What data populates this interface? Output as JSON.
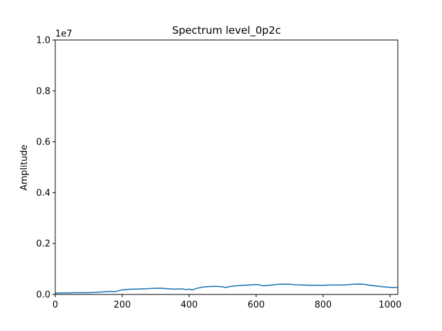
{
  "chart_data": {
    "type": "line",
    "title": "Spectrum level_0p2c",
    "xlabel": "",
    "ylabel": "Amplitude",
    "y_scale_label": "1e7",
    "xlim": [
      0,
      1023
    ],
    "ylim": [
      0,
      1.0
    ],
    "x_ticks": [
      0,
      200,
      400,
      600,
      800,
      1000
    ],
    "x_tick_labels": [
      "0",
      "200",
      "400",
      "600",
      "800",
      "1000"
    ],
    "y_ticks": [
      0.0,
      0.2,
      0.4,
      0.6,
      0.8,
      1.0
    ],
    "y_tick_labels": [
      "0.0",
      "0.2",
      "0.4",
      "0.6",
      "0.8",
      "1.0"
    ],
    "grid": false,
    "series": [
      {
        "color": "#1f77b4",
        "x": [
          0,
          20,
          40,
          60,
          80,
          100,
          120,
          140,
          160,
          180,
          190,
          200,
          220,
          240,
          260,
          280,
          300,
          320,
          340,
          360,
          380,
          390,
          400,
          410,
          420,
          430,
          440,
          460,
          480,
          500,
          510,
          520,
          540,
          560,
          580,
          600,
          610,
          620,
          640,
          660,
          680,
          700,
          720,
          740,
          760,
          780,
          800,
          820,
          840,
          860,
          880,
          900,
          920,
          940,
          960,
          980,
          1000,
          1023
        ],
        "y": [
          0.005,
          0.006,
          0.006,
          0.007,
          0.007,
          0.007,
          0.008,
          0.01,
          0.012,
          0.011,
          0.015,
          0.018,
          0.02,
          0.021,
          0.022,
          0.023,
          0.024,
          0.024,
          0.022,
          0.021,
          0.022,
          0.019,
          0.021,
          0.018,
          0.023,
          0.026,
          0.029,
          0.031,
          0.032,
          0.03,
          0.027,
          0.031,
          0.034,
          0.036,
          0.037,
          0.039,
          0.038,
          0.034,
          0.036,
          0.039,
          0.041,
          0.04,
          0.038,
          0.037,
          0.036,
          0.036,
          0.036,
          0.037,
          0.037,
          0.037,
          0.039,
          0.041,
          0.04,
          0.036,
          0.033,
          0.03,
          0.028,
          0.027
        ]
      }
    ]
  }
}
